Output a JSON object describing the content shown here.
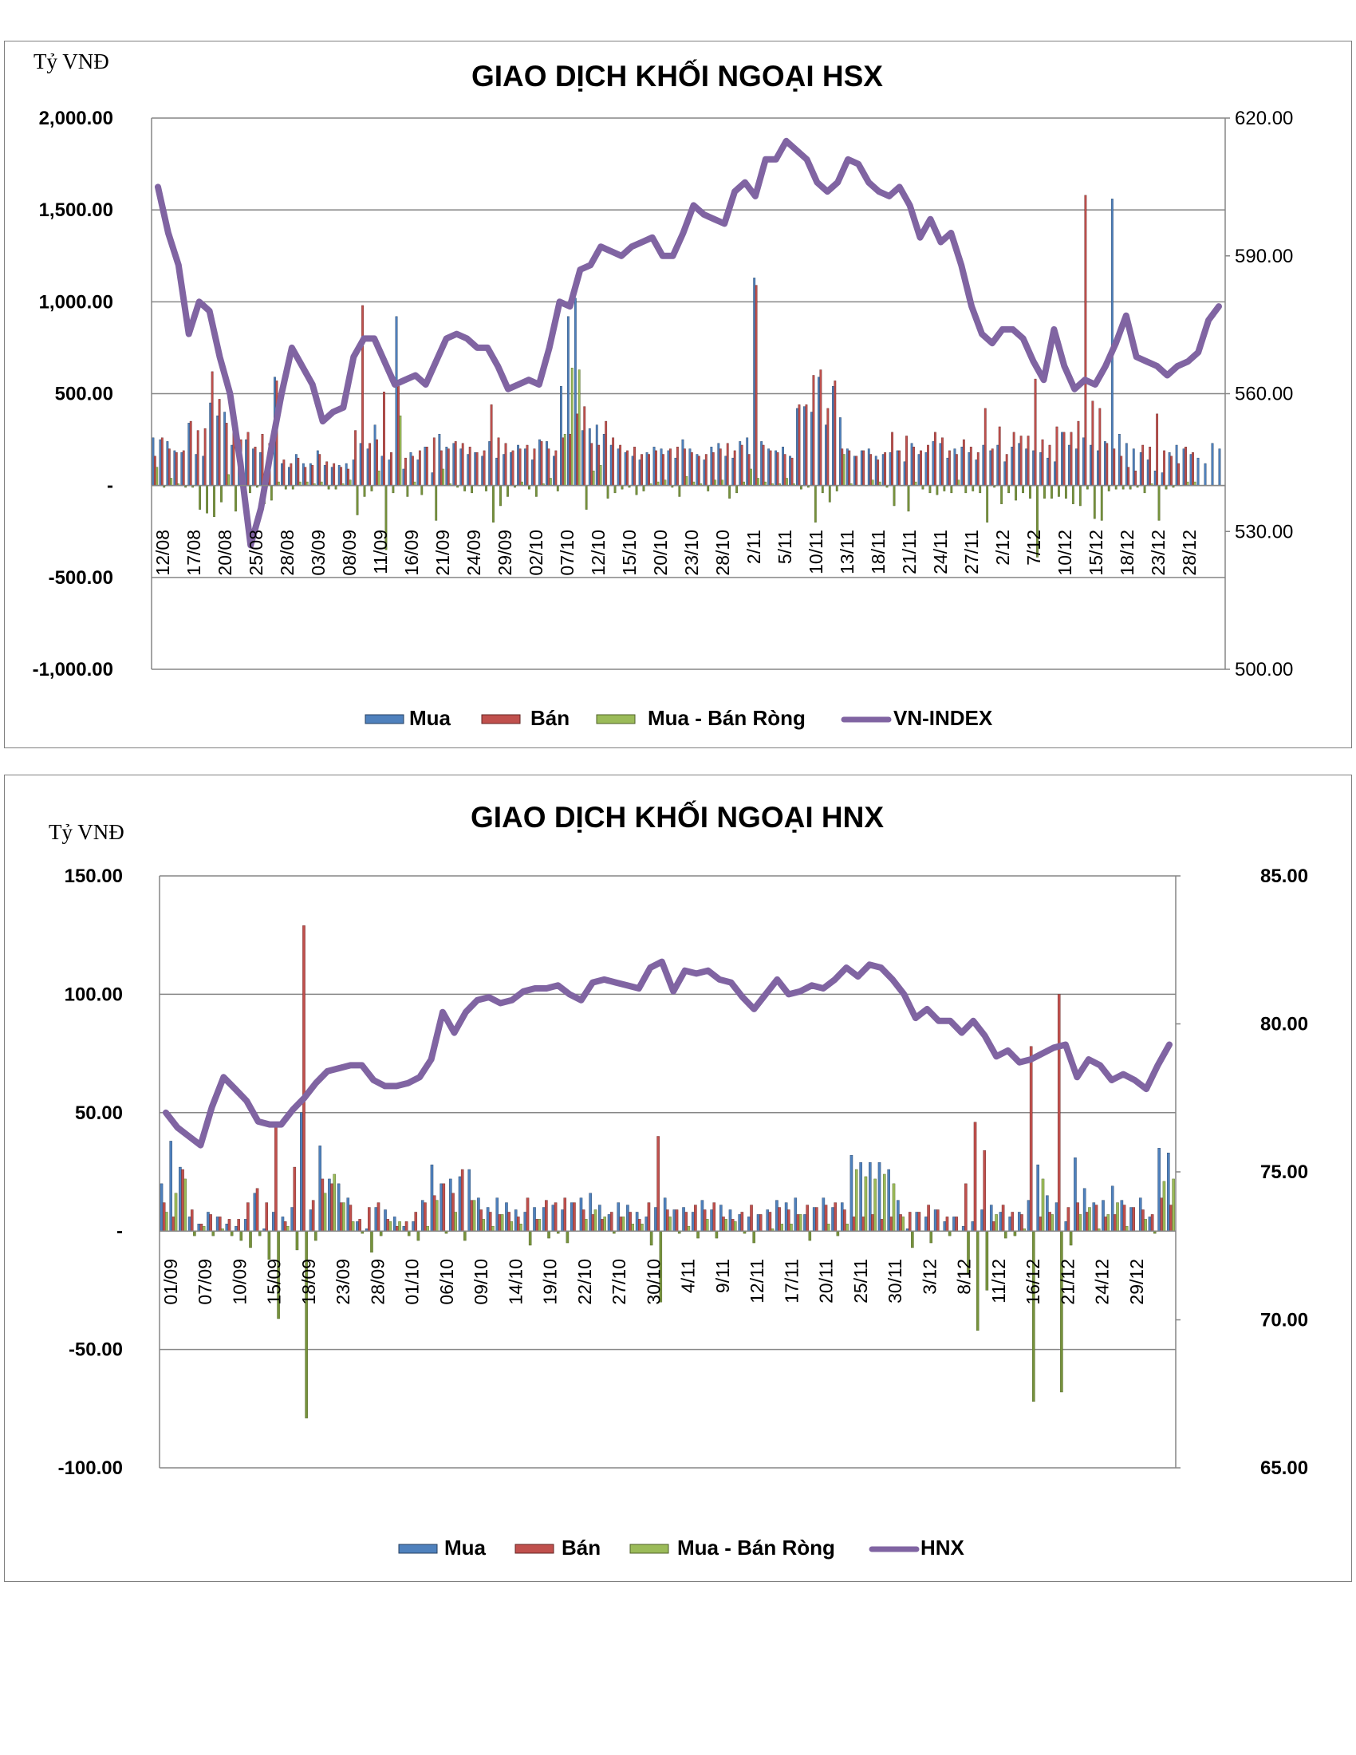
{
  "charts": {
    "hsx": {
      "title": "GIAO DỊCH KHỐI NGOẠI HSX",
      "unit_label": "Tỷ VNĐ",
      "left_ticks": [
        "2,000.00",
        "1,500.00",
        "1,000.00",
        "500.00",
        "-",
        "-500.00",
        "-1,000.00"
      ],
      "right_ticks": [
        "620.00",
        "590.00",
        "560.00",
        "530.00",
        "500.00"
      ],
      "legend": {
        "buy": "Mua",
        "sell": "Bán",
        "net": "Mua - Bán Ròng",
        "index": "VN-INDEX"
      }
    },
    "hnx": {
      "title": "GIAO DỊCH KHỐI NGOẠI HNX",
      "unit_label": "Tỷ VNĐ",
      "left_ticks": [
        "150.00",
        "100.00",
        "50.00",
        "-",
        "-50.00",
        "-100.00"
      ],
      "right_ticks": [
        "85.00",
        "80.00",
        "75.00",
        "70.00",
        "65.00"
      ],
      "legend": {
        "buy": "Mua",
        "sell": "Bán",
        "net": "Mua - Bán Ròng",
        "index": "HNX"
      }
    }
  },
  "colors": {
    "buy": "#4f81bd",
    "sell": "#c0504d",
    "net": "#9bbb59",
    "net_neg": "#76923c",
    "index": "#8064a2",
    "grid": "#868686"
  },
  "chart_data": [
    {
      "type": "bar",
      "title": "GIAO DỊCH KHỐI NGOẠI HSX",
      "ylabel": "Tỷ VNĐ",
      "ylim": [
        -1000,
        2000
      ],
      "y2lim": [
        500,
        620
      ],
      "x_tick_labels": [
        "12/08",
        "17/08",
        "20/08",
        "25/08",
        "28/08",
        "03/09",
        "08/09",
        "11/09",
        "16/09",
        "21/09",
        "24/09",
        "29/09",
        "02/10",
        "07/10",
        "12/10",
        "15/10",
        "20/10",
        "23/10",
        "28/10",
        "2/11",
        "5/11",
        "10/11",
        "13/11",
        "18/11",
        "21/11",
        "24/11",
        "27/11",
        "2/12",
        "7/12",
        "10/12",
        "15/12",
        "18/12",
        "23/12",
        "28/12"
      ],
      "series": [
        {
          "name": "Mua",
          "type": "bar",
          "values": [
            260,
            250,
            240,
            190,
            180,
            340,
            170,
            160,
            450,
            380,
            400,
            220,
            180,
            250,
            200,
            180,
            150,
            590,
            120,
            100,
            170,
            120,
            120,
            190,
            110,
            100,
            110,
            120,
            140,
            230,
            200,
            330,
            160,
            140,
            920,
            90,
            180,
            140,
            210,
            70,
            280,
            210,
            230,
            200,
            170,
            180,
            160,
            240,
            150,
            170,
            180,
            220,
            200,
            140,
            250,
            240,
            160,
            540,
            920,
            1020,
            300,
            310,
            330,
            280,
            220,
            200,
            180,
            160,
            140,
            180,
            210,
            200,
            190,
            150,
            250,
            200,
            170,
            140,
            210,
            230,
            160,
            150,
            240,
            260,
            1130,
            240,
            200,
            190,
            210,
            160,
            420,
            430,
            400,
            590,
            330,
            540,
            370,
            200,
            160,
            190,
            200,
            160,
            170,
            180,
            190,
            130,
            230,
            170,
            180,
            240,
            230,
            150,
            200,
            210,
            180,
            140,
            220,
            190,
            220,
            130,
            210,
            230,
            200,
            190,
            180,
            150,
            130,
            290,
            220,
            200,
            260,
            220,
            190,
            240,
            1560,
            280,
            230,
            200,
            180,
            140,
            80,
            70,
            180,
            220,
            200,
            170,
            150,
            120,
            230,
            200
          ],
          "color": "#4f81bd"
        },
        {
          "name": "Bán",
          "type": "bar",
          "values": [
            160,
            260,
            200,
            180,
            190,
            350,
            300,
            310,
            620,
            470,
            340,
            360,
            250,
            290,
            210,
            280,
            230,
            570,
            140,
            120,
            150,
            100,
            110,
            170,
            130,
            120,
            100,
            90,
            300,
            980,
            230,
            250,
            510,
            180,
            540,
            150,
            160,
            190,
            210,
            260,
            190,
            200,
            240,
            230,
            210,
            180,
            190,
            440,
            260,
            230,
            190,
            200,
            220,
            200,
            240,
            200,
            190,
            260,
            280,
            390,
            430,
            230,
            220,
            350,
            260,
            220,
            190,
            210,
            170,
            170,
            190,
            170,
            200,
            210,
            200,
            180,
            160,
            170,
            180,
            200,
            230,
            190,
            220,
            170,
            1090,
            220,
            190,
            180,
            170,
            150,
            440,
            440,
            600,
            630,
            420,
            570,
            200,
            190,
            160,
            190,
            170,
            140,
            180,
            290,
            190,
            270,
            210,
            190,
            220,
            290,
            260,
            190,
            170,
            250,
            210,
            180,
            420,
            200,
            320,
            170,
            290,
            270,
            270,
            580,
            250,
            220,
            320,
            290,
            290,
            350,
            1580,
            460,
            420,
            230,
            200,
            160,
            100,
            80,
            220,
            210,
            390,
            190,
            160,
            120,
            210,
            180
          ],
          "color": "#c0504d"
        },
        {
          "name": "Mua - Bán Ròng",
          "type": "bar",
          "values": [
            100,
            -10,
            40,
            10,
            -10,
            -10,
            -130,
            -150,
            -170,
            -90,
            60,
            -140,
            -70,
            -40,
            -10,
            -100,
            -80,
            20,
            -20,
            -20,
            20,
            20,
            10,
            20,
            -20,
            -20,
            10,
            30,
            -160,
            -60,
            -30,
            80,
            -350,
            -40,
            380,
            -60,
            20,
            -50,
            0,
            -190,
            90,
            10,
            -10,
            -30,
            -40,
            0,
            -30,
            -200,
            -110,
            -60,
            -10,
            20,
            -20,
            -60,
            10,
            40,
            -30,
            280,
            640,
            630,
            -130,
            80,
            110,
            -70,
            -40,
            -20,
            -10,
            -50,
            -30,
            10,
            20,
            30,
            -10,
            -60,
            50,
            20,
            10,
            -30,
            30,
            30,
            -70,
            -40,
            20,
            90,
            40,
            20,
            10,
            10,
            40,
            10,
            -20,
            -10,
            -200,
            -40,
            -90,
            -30,
            170,
            10,
            0,
            0,
            30,
            20,
            -10,
            -110,
            0,
            -140,
            20,
            -20,
            -40,
            -50,
            -30,
            -40,
            30,
            -40,
            -30,
            -40,
            -200,
            -10,
            -100,
            -40,
            -80,
            -40,
            -70,
            -390,
            -70,
            -70,
            -60,
            -70,
            -100,
            -110,
            -20,
            -180,
            -190,
            -30,
            -20,
            -20,
            -20,
            -10,
            -40,
            10,
            -190,
            -20,
            -10,
            0,
            20,
            20
          ],
          "color": "#9bbb59"
        },
        {
          "name": "VN-INDEX",
          "type": "line",
          "axis": "right",
          "values": [
            605,
            595,
            588,
            573,
            580,
            578,
            568,
            560,
            545,
            527,
            535,
            548,
            560,
            570,
            566,
            562,
            554,
            556,
            557,
            568,
            572,
            572,
            567,
            562,
            563,
            564,
            562,
            567,
            572,
            573,
            572,
            570,
            570,
            566,
            561,
            562,
            563,
            562,
            570,
            580,
            579,
            587,
            588,
            592,
            591,
            590,
            592,
            593,
            594,
            590,
            590,
            595,
            601,
            599,
            598,
            597,
            604,
            606,
            603,
            611,
            611,
            615,
            613,
            611,
            606,
            604,
            606,
            611,
            610,
            606,
            604,
            603,
            605,
            601,
            594,
            598,
            593,
            595,
            588,
            579,
            573,
            571,
            574,
            574,
            572,
            567,
            563,
            574,
            566,
            561,
            563,
            562,
            566,
            571,
            577,
            568,
            567,
            566,
            564,
            566,
            567,
            569,
            576,
            579
          ]
        }
      ]
    },
    {
      "type": "bar",
      "title": "GIAO DỊCH KHỐI NGOẠI HNX",
      "ylabel": "Tỷ VNĐ",
      "ylim": [
        -100,
        150
      ],
      "y2lim": [
        65,
        85
      ],
      "x_tick_labels": [
        "01/09",
        "07/09",
        "10/09",
        "15/09",
        "18/09",
        "23/09",
        "28/09",
        "01/10",
        "06/10",
        "09/10",
        "14/10",
        "19/10",
        "22/10",
        "27/10",
        "30/10",
        "4/11",
        "9/11",
        "12/11",
        "17/11",
        "20/11",
        "25/11",
        "30/11",
        "3/12",
        "8/12",
        "11/12",
        "16/12",
        "21/12",
        "24/12",
        "29/12"
      ],
      "series": [
        {
          "name": "Mua",
          "type": "bar",
          "values": [
            20,
            38,
            27,
            6,
            3,
            8,
            6,
            3,
            2,
            5,
            16,
            1,
            8,
            6,
            10,
            50,
            9,
            36,
            22,
            20,
            14,
            4,
            1,
            10,
            9,
            6,
            2,
            4,
            13,
            28,
            20,
            22,
            23,
            26,
            14,
            10,
            14,
            12,
            9,
            8,
            10,
            10,
            11,
            9,
            12,
            14,
            16,
            11,
            7,
            12,
            11,
            8,
            6,
            10,
            14,
            9,
            10,
            8,
            13,
            9,
            11,
            9,
            7,
            6,
            7,
            9,
            13,
            12,
            14,
            7,
            10,
            14,
            10,
            12,
            32,
            29,
            29,
            29,
            26,
            13,
            1,
            8,
            6,
            9,
            4,
            6,
            2,
            4,
            9,
            11,
            8,
            6,
            8,
            13,
            28,
            15,
            12,
            4,
            31,
            18,
            12,
            13,
            19,
            13,
            10,
            14,
            6,
            35,
            33
          ],
          "color": "#4f81bd"
        },
        {
          "name": "Bán",
          "type": "bar",
          "values": [
            12,
            6,
            26,
            9,
            3,
            7,
            6,
            5,
            5,
            12,
            18,
            12,
            45,
            4,
            27,
            129,
            13,
            22,
            20,
            12,
            11,
            5,
            10,
            12,
            5,
            2,
            4,
            8,
            12,
            15,
            20,
            16,
            26,
            13,
            9,
            8,
            7,
            8,
            6,
            14,
            5,
            13,
            12,
            14,
            12,
            9,
            7,
            5,
            8,
            6,
            8,
            5,
            12,
            40,
            9,
            9,
            8,
            11,
            9,
            12,
            6,
            5,
            8,
            11,
            7,
            8,
            10,
            9,
            7,
            11,
            10,
            11,
            12,
            9,
            6,
            6,
            7,
            5,
            6,
            7,
            8,
            8,
            11,
            9,
            6,
            6,
            20,
            46,
            34,
            4,
            11,
            8,
            7,
            78,
            6,
            8,
            100,
            10,
            12,
            8,
            11,
            6,
            7,
            11,
            10,
            9,
            7,
            14,
            11
          ],
          "color": "#c0504d"
        },
        {
          "name": "Mua - Bán Ròng",
          "type": "bar",
          "values": [
            8,
            16,
            22,
            -2,
            2,
            -2,
            1,
            -2,
            -4,
            -7,
            -2,
            -12,
            -37,
            2,
            -8,
            -79,
            -4,
            16,
            24,
            12,
            4,
            -1,
            -9,
            -2,
            4,
            4,
            -2,
            -4,
            2,
            13,
            -1,
            8,
            -4,
            13,
            5,
            2,
            7,
            4,
            3,
            -6,
            5,
            -3,
            -1,
            -5,
            0,
            5,
            9,
            6,
            -1,
            6,
            3,
            3,
            -6,
            -30,
            6,
            -1,
            2,
            -3,
            5,
            -3,
            5,
            4,
            -1,
            -5,
            0,
            1,
            3,
            3,
            7,
            -4,
            0,
            3,
            -2,
            3,
            26,
            23,
            22,
            24,
            20,
            6,
            -7,
            0,
            -5,
            0,
            -2,
            0,
            -18,
            -42,
            -25,
            7,
            -3,
            -2,
            1,
            -72,
            22,
            7,
            -68,
            -6,
            7,
            10,
            1,
            7,
            12,
            2,
            0,
            5,
            -1,
            21,
            22
          ],
          "color": "#9bbb59"
        },
        {
          "name": "HNX",
          "type": "line",
          "axis": "right",
          "values": [
            77.0,
            76.5,
            76.2,
            75.9,
            77.2,
            78.2,
            77.8,
            77.4,
            76.7,
            76.6,
            76.6,
            77.1,
            77.5,
            78.0,
            78.4,
            78.5,
            78.6,
            78.6,
            78.1,
            77.9,
            77.9,
            78.0,
            78.2,
            78.8,
            80.4,
            79.7,
            80.4,
            80.8,
            80.9,
            80.7,
            80.8,
            81.1,
            81.2,
            81.2,
            81.3,
            81.0,
            80.8,
            81.4,
            81.5,
            81.4,
            81.3,
            81.2,
            81.9,
            82.1,
            81.1,
            81.8,
            81.7,
            81.8,
            81.5,
            81.4,
            80.9,
            80.5,
            81.0,
            81.5,
            81.0,
            81.1,
            81.3,
            81.2,
            81.5,
            81.9,
            81.6,
            82.0,
            81.9,
            81.5,
            81.0,
            80.2,
            80.5,
            80.1,
            80.1,
            79.7,
            80.1,
            79.6,
            78.9,
            79.1,
            78.7,
            78.8,
            79.0,
            79.2,
            79.3,
            78.2,
            78.8,
            78.6,
            78.1,
            78.3,
            78.1,
            77.8,
            78.6,
            79.3
          ]
        }
      ]
    }
  ]
}
